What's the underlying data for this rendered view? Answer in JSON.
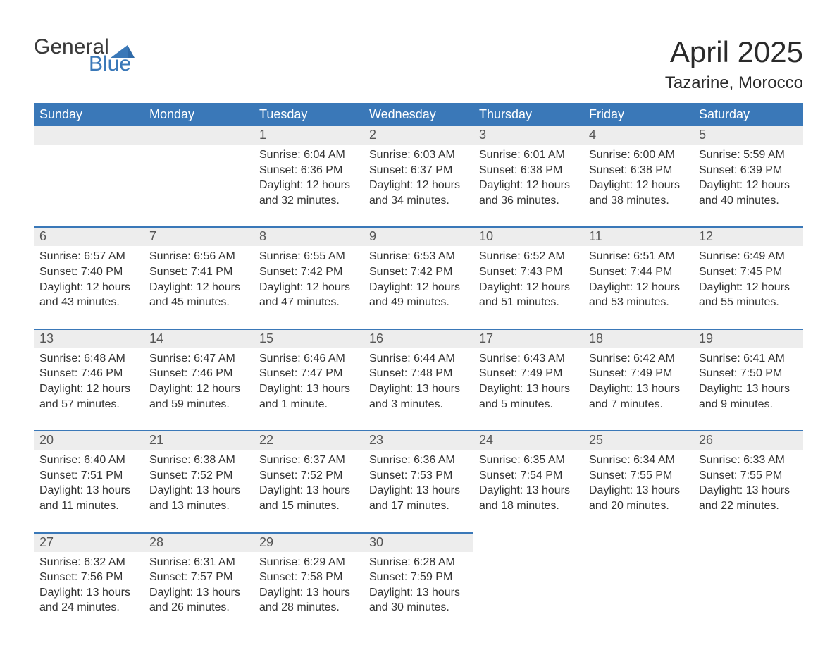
{
  "logo": {
    "general": "General",
    "blue": "Blue"
  },
  "title": {
    "month": "April 2025",
    "location": "Tazarine, Morocco"
  },
  "colors": {
    "header_bg": "#3a78b8",
    "header_text": "#ffffff",
    "daynum_bg": "#ededed",
    "border": "#3a78b8",
    "body_text": "#333333",
    "logo_gray": "#3a3a3a",
    "logo_blue": "#3a78b8",
    "page_bg": "#ffffff"
  },
  "layout": {
    "columns": 7,
    "rows": 5,
    "first_day_column": 2,
    "font_family": "Segoe UI",
    "header_fontsize": 18,
    "daynum_fontsize": 18,
    "body_fontsize": 16,
    "title_fontsize": 42,
    "location_fontsize": 24
  },
  "day_headers": [
    "Sunday",
    "Monday",
    "Tuesday",
    "Wednesday",
    "Thursday",
    "Friday",
    "Saturday"
  ],
  "days": [
    {
      "num": "1",
      "sunrise": "Sunrise: 6:04 AM",
      "sunset": "Sunset: 6:36 PM",
      "daylight1": "Daylight: 12 hours",
      "daylight2": "and 32 minutes."
    },
    {
      "num": "2",
      "sunrise": "Sunrise: 6:03 AM",
      "sunset": "Sunset: 6:37 PM",
      "daylight1": "Daylight: 12 hours",
      "daylight2": "and 34 minutes."
    },
    {
      "num": "3",
      "sunrise": "Sunrise: 6:01 AM",
      "sunset": "Sunset: 6:38 PM",
      "daylight1": "Daylight: 12 hours",
      "daylight2": "and 36 minutes."
    },
    {
      "num": "4",
      "sunrise": "Sunrise: 6:00 AM",
      "sunset": "Sunset: 6:38 PM",
      "daylight1": "Daylight: 12 hours",
      "daylight2": "and 38 minutes."
    },
    {
      "num": "5",
      "sunrise": "Sunrise: 5:59 AM",
      "sunset": "Sunset: 6:39 PM",
      "daylight1": "Daylight: 12 hours",
      "daylight2": "and 40 minutes."
    },
    {
      "num": "6",
      "sunrise": "Sunrise: 6:57 AM",
      "sunset": "Sunset: 7:40 PM",
      "daylight1": "Daylight: 12 hours",
      "daylight2": "and 43 minutes."
    },
    {
      "num": "7",
      "sunrise": "Sunrise: 6:56 AM",
      "sunset": "Sunset: 7:41 PM",
      "daylight1": "Daylight: 12 hours",
      "daylight2": "and 45 minutes."
    },
    {
      "num": "8",
      "sunrise": "Sunrise: 6:55 AM",
      "sunset": "Sunset: 7:42 PM",
      "daylight1": "Daylight: 12 hours",
      "daylight2": "and 47 minutes."
    },
    {
      "num": "9",
      "sunrise": "Sunrise: 6:53 AM",
      "sunset": "Sunset: 7:42 PM",
      "daylight1": "Daylight: 12 hours",
      "daylight2": "and 49 minutes."
    },
    {
      "num": "10",
      "sunrise": "Sunrise: 6:52 AM",
      "sunset": "Sunset: 7:43 PM",
      "daylight1": "Daylight: 12 hours",
      "daylight2": "and 51 minutes."
    },
    {
      "num": "11",
      "sunrise": "Sunrise: 6:51 AM",
      "sunset": "Sunset: 7:44 PM",
      "daylight1": "Daylight: 12 hours",
      "daylight2": "and 53 minutes."
    },
    {
      "num": "12",
      "sunrise": "Sunrise: 6:49 AM",
      "sunset": "Sunset: 7:45 PM",
      "daylight1": "Daylight: 12 hours",
      "daylight2": "and 55 minutes."
    },
    {
      "num": "13",
      "sunrise": "Sunrise: 6:48 AM",
      "sunset": "Sunset: 7:46 PM",
      "daylight1": "Daylight: 12 hours",
      "daylight2": "and 57 minutes."
    },
    {
      "num": "14",
      "sunrise": "Sunrise: 6:47 AM",
      "sunset": "Sunset: 7:46 PM",
      "daylight1": "Daylight: 12 hours",
      "daylight2": "and 59 minutes."
    },
    {
      "num": "15",
      "sunrise": "Sunrise: 6:46 AM",
      "sunset": "Sunset: 7:47 PM",
      "daylight1": "Daylight: 13 hours",
      "daylight2": "and 1 minute."
    },
    {
      "num": "16",
      "sunrise": "Sunrise: 6:44 AM",
      "sunset": "Sunset: 7:48 PM",
      "daylight1": "Daylight: 13 hours",
      "daylight2": "and 3 minutes."
    },
    {
      "num": "17",
      "sunrise": "Sunrise: 6:43 AM",
      "sunset": "Sunset: 7:49 PM",
      "daylight1": "Daylight: 13 hours",
      "daylight2": "and 5 minutes."
    },
    {
      "num": "18",
      "sunrise": "Sunrise: 6:42 AM",
      "sunset": "Sunset: 7:49 PM",
      "daylight1": "Daylight: 13 hours",
      "daylight2": "and 7 minutes."
    },
    {
      "num": "19",
      "sunrise": "Sunrise: 6:41 AM",
      "sunset": "Sunset: 7:50 PM",
      "daylight1": "Daylight: 13 hours",
      "daylight2": "and 9 minutes."
    },
    {
      "num": "20",
      "sunrise": "Sunrise: 6:40 AM",
      "sunset": "Sunset: 7:51 PM",
      "daylight1": "Daylight: 13 hours",
      "daylight2": "and 11 minutes."
    },
    {
      "num": "21",
      "sunrise": "Sunrise: 6:38 AM",
      "sunset": "Sunset: 7:52 PM",
      "daylight1": "Daylight: 13 hours",
      "daylight2": "and 13 minutes."
    },
    {
      "num": "22",
      "sunrise": "Sunrise: 6:37 AM",
      "sunset": "Sunset: 7:52 PM",
      "daylight1": "Daylight: 13 hours",
      "daylight2": "and 15 minutes."
    },
    {
      "num": "23",
      "sunrise": "Sunrise: 6:36 AM",
      "sunset": "Sunset: 7:53 PM",
      "daylight1": "Daylight: 13 hours",
      "daylight2": "and 17 minutes."
    },
    {
      "num": "24",
      "sunrise": "Sunrise: 6:35 AM",
      "sunset": "Sunset: 7:54 PM",
      "daylight1": "Daylight: 13 hours",
      "daylight2": "and 18 minutes."
    },
    {
      "num": "25",
      "sunrise": "Sunrise: 6:34 AM",
      "sunset": "Sunset: 7:55 PM",
      "daylight1": "Daylight: 13 hours",
      "daylight2": "and 20 minutes."
    },
    {
      "num": "26",
      "sunrise": "Sunrise: 6:33 AM",
      "sunset": "Sunset: 7:55 PM",
      "daylight1": "Daylight: 13 hours",
      "daylight2": "and 22 minutes."
    },
    {
      "num": "27",
      "sunrise": "Sunrise: 6:32 AM",
      "sunset": "Sunset: 7:56 PM",
      "daylight1": "Daylight: 13 hours",
      "daylight2": "and 24 minutes."
    },
    {
      "num": "28",
      "sunrise": "Sunrise: 6:31 AM",
      "sunset": "Sunset: 7:57 PM",
      "daylight1": "Daylight: 13 hours",
      "daylight2": "and 26 minutes."
    },
    {
      "num": "29",
      "sunrise": "Sunrise: 6:29 AM",
      "sunset": "Sunset: 7:58 PM",
      "daylight1": "Daylight: 13 hours",
      "daylight2": "and 28 minutes."
    },
    {
      "num": "30",
      "sunrise": "Sunrise: 6:28 AM",
      "sunset": "Sunset: 7:59 PM",
      "daylight1": "Daylight: 13 hours",
      "daylight2": "and 30 minutes."
    }
  ]
}
